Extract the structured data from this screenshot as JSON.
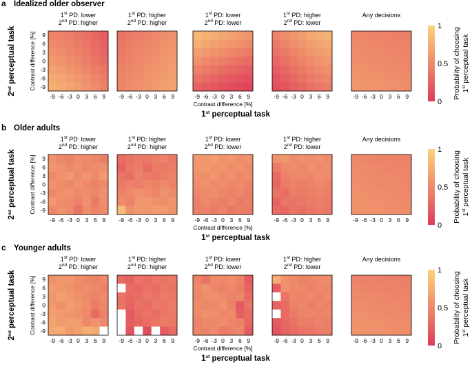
{
  "chart_data": {
    "type": "heatmap",
    "colormap": [
      "#de3c5a",
      "#ee8a6a",
      "#fbd27c"
    ],
    "color_range": [
      0,
      1
    ],
    "axis_ticks": [
      -9,
      -6,
      -3,
      0,
      3,
      6,
      9
    ],
    "panel_titles": [
      {
        "l1": {
          "sup": "st",
          "pre": "1",
          "post": " PD: lower"
        },
        "l2": {
          "sup": "nd",
          "pre": "2",
          "post": " PD: higher"
        }
      },
      {
        "l1": {
          "sup": "st",
          "pre": "1",
          "post": " PD: higher"
        },
        "l2": {
          "sup": "nd",
          "pre": "2",
          "post": " PD: higher"
        }
      },
      {
        "l1": {
          "sup": "st",
          "pre": "1",
          "post": " PD: lower"
        },
        "l2": {
          "sup": "nd",
          "pre": "2",
          "post": " PD: lower"
        }
      },
      {
        "l1": {
          "sup": "st",
          "pre": "1",
          "post": " PD: higher"
        },
        "l2": {
          "sup": "nd",
          "pre": "2",
          "post": " PD: lower"
        }
      },
      {
        "single": "Any decisions"
      }
    ],
    "inner_ylabel": "Contrast difference [%]",
    "inner_xlabel": "Contrast difference [%]",
    "xlabel": {
      "pre": "1",
      "sup": "st",
      "post": " perceptual task"
    },
    "ylabel": {
      "pre": "2",
      "sup": "nd",
      "post": " perceptual task"
    },
    "colorbar": {
      "ticks": [
        "1",
        "0.5",
        "0"
      ],
      "label_line1": "Probability of choosing",
      "label_line2": {
        "pre": "1",
        "sup": "st",
        "post": " perceptual task"
      }
    },
    "rows": [
      {
        "letter": "a",
        "title": "Idealized older observer",
        "panels": [
          [
            [
              0.46,
              0.44,
              0.42,
              0.38,
              0.34,
              0.28,
              0.22
            ],
            [
              0.5,
              0.48,
              0.45,
              0.41,
              0.36,
              0.3,
              0.24
            ],
            [
              0.55,
              0.52,
              0.48,
              0.44,
              0.39,
              0.33,
              0.27
            ],
            [
              0.6,
              0.57,
              0.53,
              0.48,
              0.43,
              0.37,
              0.31
            ],
            [
              0.66,
              0.62,
              0.58,
              0.53,
              0.48,
              0.42,
              0.36
            ],
            [
              0.72,
              0.68,
              0.63,
              0.58,
              0.53,
              0.47,
              0.41
            ],
            [
              0.76,
              0.72,
              0.68,
              0.63,
              0.57,
              0.51,
              0.45
            ]
          ],
          [
            [
              0.36,
              0.4,
              0.43,
              0.46,
              0.49,
              0.52,
              0.55
            ],
            [
              0.38,
              0.42,
              0.45,
              0.48,
              0.51,
              0.54,
              0.57
            ],
            [
              0.4,
              0.44,
              0.47,
              0.5,
              0.53,
              0.56,
              0.59
            ],
            [
              0.42,
              0.46,
              0.49,
              0.52,
              0.55,
              0.58,
              0.61
            ],
            [
              0.44,
              0.48,
              0.51,
              0.54,
              0.57,
              0.6,
              0.63
            ],
            [
              0.46,
              0.5,
              0.53,
              0.56,
              0.59,
              0.62,
              0.65
            ],
            [
              0.48,
              0.52,
              0.55,
              0.58,
              0.61,
              0.64,
              0.67
            ]
          ],
          [
            [
              0.82,
              0.78,
              0.74,
              0.7,
              0.66,
              0.62,
              0.58
            ],
            [
              0.74,
              0.7,
              0.66,
              0.62,
              0.58,
              0.54,
              0.5
            ],
            [
              0.64,
              0.6,
              0.56,
              0.52,
              0.48,
              0.44,
              0.4
            ],
            [
              0.54,
              0.5,
              0.46,
              0.42,
              0.38,
              0.34,
              0.3
            ],
            [
              0.44,
              0.4,
              0.36,
              0.32,
              0.28,
              0.24,
              0.2
            ],
            [
              0.34,
              0.3,
              0.26,
              0.22,
              0.18,
              0.15,
              0.12
            ],
            [
              0.24,
              0.2,
              0.17,
              0.14,
              0.11,
              0.08,
              0.06
            ]
          ],
          [
            [
              0.46,
              0.52,
              0.58,
              0.64,
              0.7,
              0.74,
              0.78
            ],
            [
              0.4,
              0.46,
              0.52,
              0.58,
              0.64,
              0.68,
              0.72
            ],
            [
              0.34,
              0.4,
              0.46,
              0.52,
              0.58,
              0.62,
              0.66
            ],
            [
              0.28,
              0.34,
              0.4,
              0.46,
              0.52,
              0.56,
              0.6
            ],
            [
              0.22,
              0.28,
              0.34,
              0.4,
              0.46,
              0.5,
              0.54
            ],
            [
              0.16,
              0.22,
              0.28,
              0.34,
              0.4,
              0.44,
              0.48
            ],
            [
              0.12,
              0.16,
              0.22,
              0.28,
              0.34,
              0.38,
              0.42
            ]
          ],
          [
            [
              0.48,
              0.47,
              0.46,
              0.45,
              0.44,
              0.43,
              0.42
            ],
            [
              0.5,
              0.49,
              0.48,
              0.47,
              0.46,
              0.45,
              0.44
            ],
            [
              0.52,
              0.51,
              0.5,
              0.49,
              0.48,
              0.47,
              0.46
            ],
            [
              0.53,
              0.52,
              0.51,
              0.5,
              0.49,
              0.48,
              0.47
            ],
            [
              0.55,
              0.54,
              0.53,
              0.52,
              0.51,
              0.5,
              0.49
            ],
            [
              0.57,
              0.56,
              0.55,
              0.54,
              0.53,
              0.52,
              0.51
            ],
            [
              0.59,
              0.58,
              0.57,
              0.56,
              0.55,
              0.54,
              0.53
            ]
          ]
        ]
      },
      {
        "letter": "b",
        "title": "Older adults",
        "panels": [
          [
            [
              0.55,
              0.48,
              0.45,
              0.52,
              0.5,
              0.47,
              0.42
            ],
            [
              0.58,
              0.55,
              0.5,
              0.54,
              0.48,
              0.52,
              0.55
            ],
            [
              0.5,
              0.55,
              0.6,
              0.5,
              0.58,
              0.5,
              0.62
            ],
            [
              0.56,
              0.52,
              0.48,
              0.55,
              0.5,
              0.45,
              0.5
            ],
            [
              0.48,
              0.54,
              0.55,
              0.5,
              0.52,
              0.48,
              0.55
            ],
            [
              0.6,
              0.52,
              0.5,
              0.45,
              0.55,
              0.4,
              0.52
            ],
            [
              0.48,
              0.55,
              0.5,
              0.35,
              0.52,
              0.45,
              0.5
            ]
          ],
          [
            [
              0.3,
              0.35,
              0.4,
              0.38,
              0.42,
              0.45,
              0.38
            ],
            [
              0.25,
              0.38,
              0.42,
              0.3,
              0.4,
              0.38,
              0.42
            ],
            [
              0.35,
              0.32,
              0.45,
              0.4,
              0.38,
              0.42,
              0.45
            ],
            [
              0.4,
              0.45,
              0.42,
              0.48,
              0.45,
              0.5,
              0.44
            ],
            [
              0.45,
              0.5,
              0.55,
              0.52,
              0.48,
              0.55,
              0.5
            ],
            [
              0.5,
              0.46,
              0.58,
              0.6,
              0.55,
              0.52,
              0.58
            ],
            [
              0.85,
              0.55,
              0.6,
              0.58,
              0.62,
              0.6,
              0.55
            ]
          ],
          [
            [
              0.6,
              0.58,
              0.62,
              0.55,
              0.58,
              0.52,
              0.55
            ],
            [
              0.58,
              0.6,
              0.55,
              0.58,
              0.52,
              0.55,
              0.5
            ],
            [
              0.55,
              0.52,
              0.58,
              0.5,
              0.55,
              0.48,
              0.52
            ],
            [
              0.52,
              0.55,
              0.5,
              0.52,
              0.48,
              0.5,
              0.45
            ],
            [
              0.48,
              0.5,
              0.52,
              0.48,
              0.45,
              0.48,
              0.42
            ],
            [
              0.45,
              0.48,
              0.45,
              0.42,
              0.48,
              0.4,
              0.44
            ],
            [
              0.42,
              0.45,
              0.4,
              0.45,
              0.38,
              0.42,
              0.4
            ]
          ],
          [
            [
              0.55,
              0.58,
              0.5,
              0.55,
              0.52,
              0.55,
              0.5
            ],
            [
              0.4,
              0.5,
              0.52,
              0.48,
              0.55,
              0.5,
              0.52
            ],
            [
              0.3,
              0.45,
              0.48,
              0.5,
              0.48,
              0.52,
              0.5
            ],
            [
              0.28,
              0.4,
              0.45,
              0.42,
              0.45,
              0.48,
              0.45
            ],
            [
              0.35,
              0.3,
              0.42,
              0.4,
              0.42,
              0.45,
              0.42
            ],
            [
              0.25,
              0.38,
              0.35,
              0.38,
              0.4,
              0.42,
              0.4
            ],
            [
              0.3,
              0.28,
              0.35,
              0.32,
              0.38,
              0.4,
              0.38
            ]
          ],
          [
            [
              0.5,
              0.48,
              0.47,
              0.46,
              0.46,
              0.45,
              0.45
            ],
            [
              0.51,
              0.5,
              0.49,
              0.48,
              0.47,
              0.47,
              0.46
            ],
            [
              0.52,
              0.51,
              0.5,
              0.49,
              0.49,
              0.48,
              0.47
            ],
            [
              0.53,
              0.52,
              0.51,
              0.5,
              0.5,
              0.49,
              0.48
            ],
            [
              0.54,
              0.53,
              0.52,
              0.52,
              0.51,
              0.5,
              0.49
            ],
            [
              0.55,
              0.54,
              0.53,
              0.53,
              0.52,
              0.51,
              0.5
            ],
            [
              0.56,
              0.55,
              0.54,
              0.54,
              0.53,
              0.52,
              0.51
            ]
          ]
        ]
      },
      {
        "letter": "c",
        "title": "Younger adults",
        "panels": [
          [
            [
              0.55,
              0.6,
              0.58,
              0.52,
              0.48,
              0.45,
              0.5
            ],
            [
              0.62,
              0.58,
              0.55,
              0.5,
              0.52,
              0.48,
              0.45
            ],
            [
              0.58,
              0.65,
              0.6,
              0.55,
              0.5,
              0.45,
              0.5
            ],
            [
              0.6,
              0.55,
              0.62,
              0.58,
              0.52,
              0.4,
              0.48
            ],
            [
              0.65,
              0.62,
              0.58,
              0.55,
              0.5,
              0.3,
              0.45
            ],
            [
              0.68,
              0.6,
              0.65,
              0.62,
              0.48,
              0.55,
              0.5
            ],
            [
              0.7,
              0.72,
              0.6,
              0.65,
              0.75,
              0.7,
              null
            ]
          ],
          [
            [
              0.3,
              0.25,
              0.35,
              0.3,
              0.38,
              0.35,
              0.4
            ],
            [
              null,
              0.3,
              0.28,
              0.35,
              0.32,
              0.38,
              0.35
            ],
            [
              0.35,
              0.28,
              0.32,
              0.38,
              0.35,
              0.4,
              0.38
            ],
            [
              0.38,
              0.25,
              0.35,
              0.3,
              0.4,
              0.35,
              0.42
            ],
            [
              null,
              0.2,
              0.3,
              0.35,
              0.32,
              0.38,
              0.4
            ],
            [
              null,
              0.22,
              0.28,
              0.32,
              0.35,
              0.4,
              0.38
            ],
            [
              null,
              0.15,
              null,
              0.1,
              null,
              0.2,
              0.3
            ]
          ],
          [
            [
              0.45,
              0.35,
              0.5,
              0.48,
              0.52,
              0.45,
              0.2
            ],
            [
              0.5,
              0.55,
              0.48,
              0.45,
              0.5,
              0.42,
              0.25
            ],
            [
              0.48,
              0.52,
              0.55,
              0.5,
              0.45,
              0.48,
              0.3
            ],
            [
              0.52,
              0.48,
              0.5,
              0.55,
              0.45,
              0.2,
              0.35
            ],
            [
              0.5,
              0.55,
              0.52,
              0.48,
              0.5,
              0.22,
              0.3
            ],
            [
              0.45,
              0.5,
              0.48,
              0.52,
              0.48,
              0.45,
              0.28
            ],
            [
              0.48,
              0.45,
              0.5,
              0.4,
              0.45,
              0.48,
              0.2
            ]
          ],
          [
            [
              0.75,
              0.55,
              0.5,
              0.45,
              0.48,
              0.5,
              0.52
            ],
            [
              0.2,
              0.55,
              0.5,
              0.48,
              0.45,
              0.5,
              0.48
            ],
            [
              null,
              0.35,
              0.48,
              0.45,
              0.5,
              0.45,
              0.5
            ],
            [
              0.25,
              0.3,
              0.45,
              0.48,
              0.42,
              0.48,
              0.45
            ],
            [
              null,
              0.3,
              0.4,
              0.45,
              0.48,
              0.45,
              0.48
            ],
            [
              0.2,
              0.28,
              0.35,
              0.42,
              0.4,
              0.45,
              0.42
            ],
            [
              0.15,
              0.25,
              0.3,
              0.35,
              0.38,
              0.4,
              0.42
            ]
          ],
          [
            [
              0.46,
              0.45,
              0.45,
              0.44,
              0.44,
              0.43,
              0.43
            ],
            [
              0.48,
              0.47,
              0.46,
              0.46,
              0.45,
              0.45,
              0.44
            ],
            [
              0.5,
              0.49,
              0.48,
              0.48,
              0.47,
              0.46,
              0.46
            ],
            [
              0.52,
              0.51,
              0.5,
              0.49,
              0.49,
              0.48,
              0.47
            ],
            [
              0.53,
              0.53,
              0.52,
              0.51,
              0.5,
              0.5,
              0.49
            ],
            [
              0.55,
              0.54,
              0.54,
              0.53,
              0.52,
              0.51,
              0.51
            ],
            [
              0.57,
              0.56,
              0.55,
              0.55,
              0.54,
              0.53,
              0.52
            ]
          ]
        ]
      }
    ]
  }
}
